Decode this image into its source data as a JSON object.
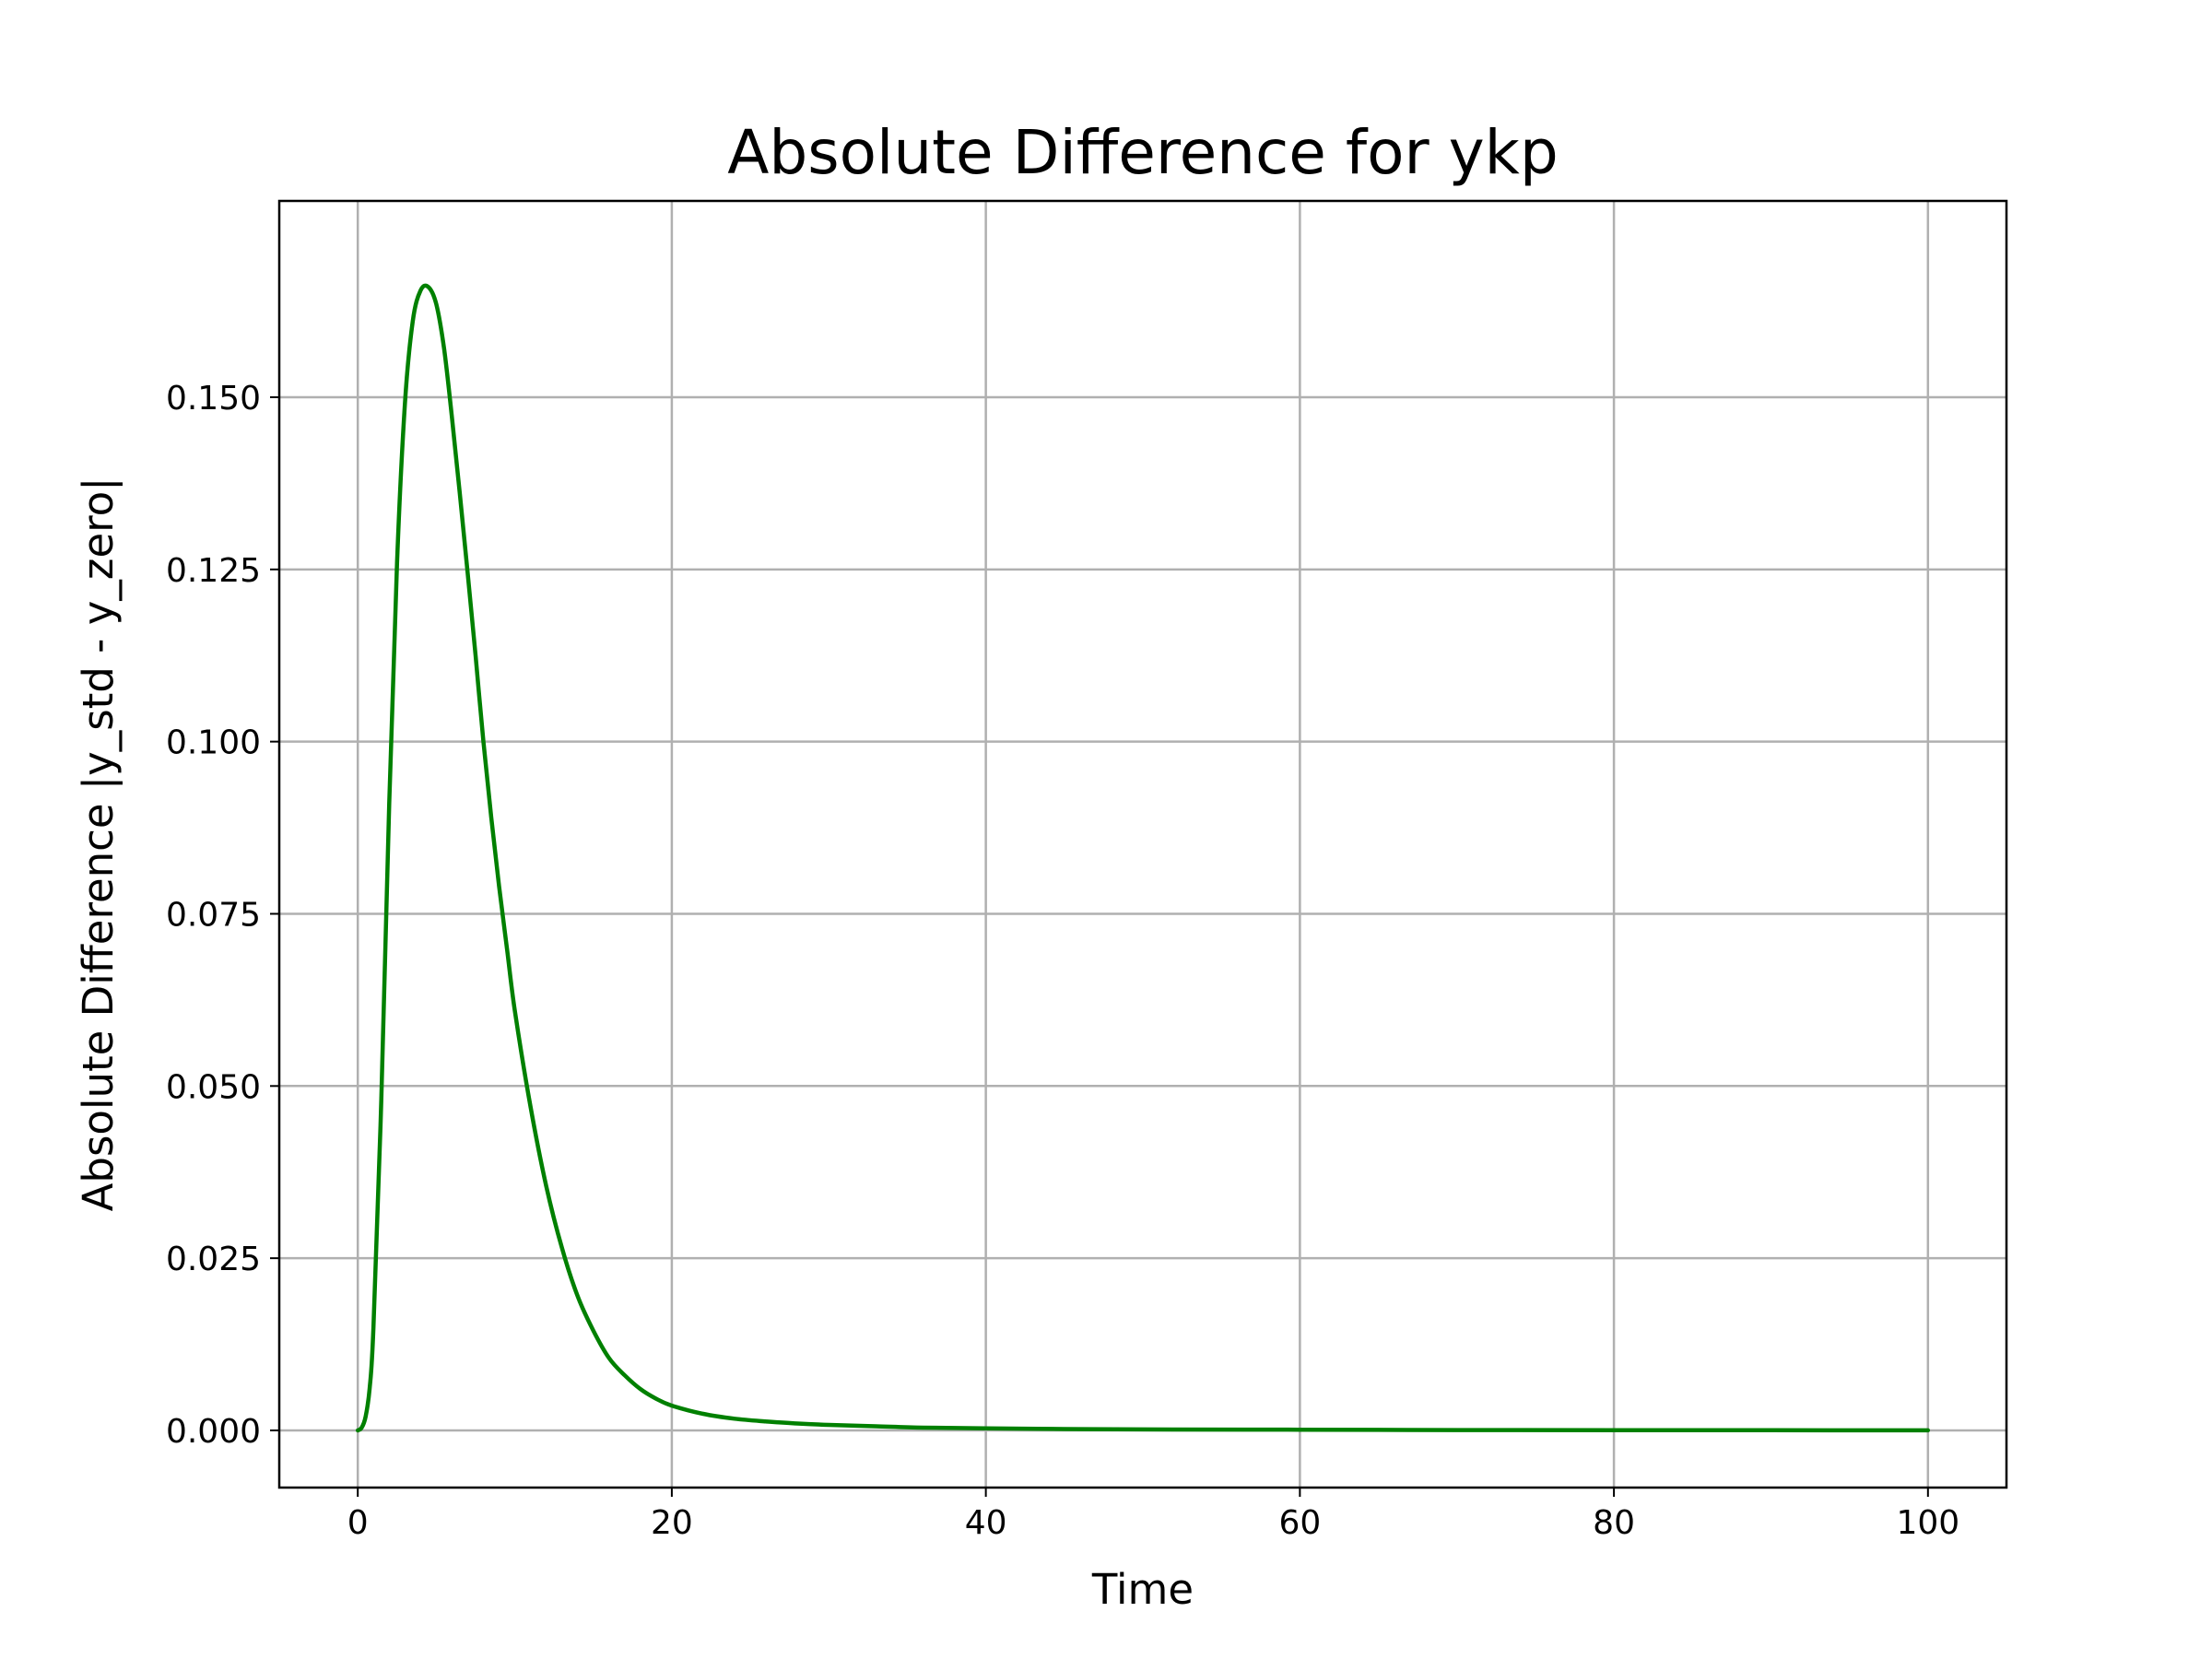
{
  "chart_data": {
    "type": "line",
    "title": "Absolute Difference for ykp",
    "xlabel": "Time",
    "ylabel": "Absolute Difference |y_std - y_zero|",
    "xlim": [
      -5,
      105
    ],
    "ylim": [
      -0.0083,
      0.1785
    ],
    "x_ticks": [
      0,
      20,
      40,
      60,
      80,
      100
    ],
    "x_tick_labels": [
      "0",
      "20",
      "40",
      "60",
      "80",
      "100"
    ],
    "y_ticks": [
      0.0,
      0.025,
      0.05,
      0.075,
      0.1,
      0.125,
      0.15
    ],
    "y_tick_labels": [
      "0.000",
      "0.025",
      "0.050",
      "0.075",
      "0.100",
      "0.125",
      "0.150"
    ],
    "grid": true,
    "legend": "none",
    "series": [
      {
        "color": "#008000",
        "x": [
          0,
          0.25,
          0.5,
          0.75,
          1,
          1.5,
          2,
          2.5,
          3,
          3.5,
          4,
          4.5,
          5,
          5.5,
          6,
          6.5,
          7,
          7.5,
          8,
          8.5,
          9,
          9.5,
          10,
          11,
          12,
          13,
          14,
          15,
          16,
          17,
          18,
          19,
          20,
          22,
          24,
          26,
          28,
          30,
          33,
          36,
          40,
          45,
          50,
          60,
          70,
          80,
          90,
          100
        ],
        "y": [
          0.0,
          0.0004,
          0.002,
          0.006,
          0.015,
          0.048,
          0.091,
          0.126,
          0.149,
          0.161,
          0.1655,
          0.166,
          0.1635,
          0.157,
          0.147,
          0.136,
          0.1245,
          0.1125,
          0.1,
          0.089,
          0.079,
          0.07,
          0.061,
          0.047,
          0.0355,
          0.0265,
          0.0195,
          0.0145,
          0.0105,
          0.008,
          0.006,
          0.0046,
          0.0036,
          0.0024,
          0.0017,
          0.0013,
          0.001,
          0.0008,
          0.0006,
          0.0004,
          0.0003,
          0.0002,
          0.00015,
          0.0001,
          5e-05,
          3e-05,
          2e-05,
          1e-05
        ]
      }
    ]
  }
}
